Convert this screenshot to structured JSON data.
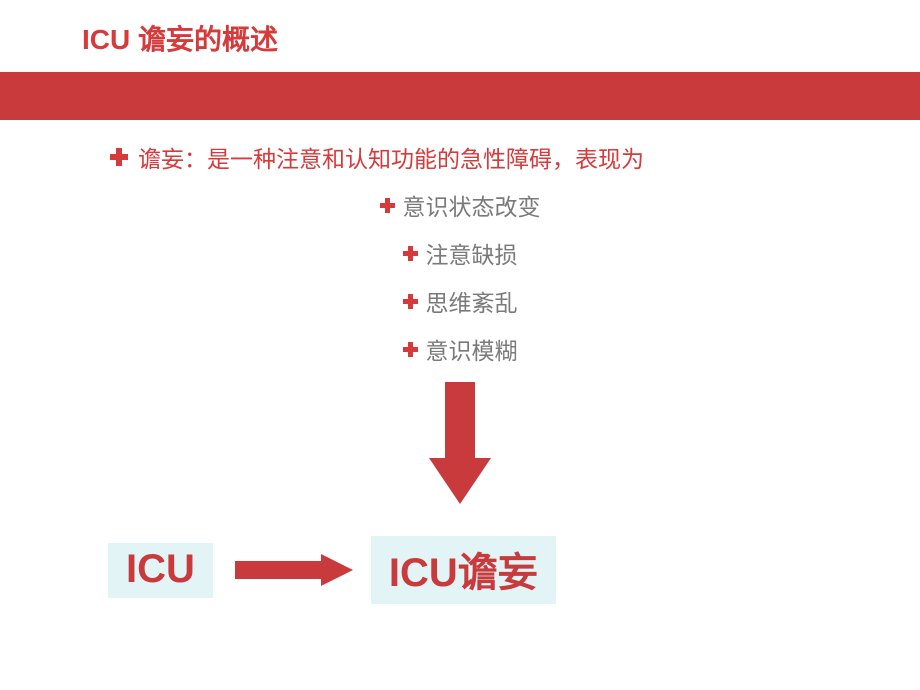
{
  "colors": {
    "accent_red": "#d73a3a",
    "brand_red_solid": "#c83a3c",
    "muted_text": "#7a7a7a",
    "box_bg": "#e2f4f5",
    "box_text": "#c83a3c",
    "white": "#ffffff"
  },
  "title": "ICU 谵妄的概述",
  "definition_line": "谵妄：是一种注意和认知功能的急性障碍，表现为",
  "bullets": [
    "意识状态改变",
    "注意缺损",
    "思维紊乱",
    "意识模糊"
  ],
  "box_left": "ICU",
  "box_right": "ICU谵妄"
}
